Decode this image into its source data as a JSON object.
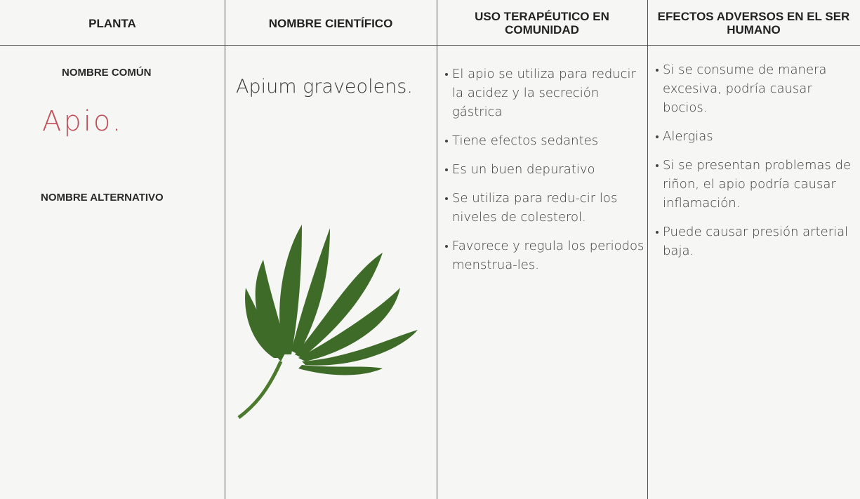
{
  "table": {
    "headers": [
      "PLANTA",
      "NOMBRE CIENTÍFICO",
      "USO TERAPÉUTICO EN COMUNIDAD",
      "EFECTOS ADVERSOS EN EL SER HUMANO"
    ],
    "planta": {
      "common_label": "NOMBRE COMÚN",
      "common_name": "Apio.",
      "alternative_label": "NOMBRE ALTERNATIVO"
    },
    "scientific_name": "Apium graveolens.",
    "uses": [
      "El apio se utiliza para reducir la acidez y la secreción gástrica",
      "Tiene efectos sedantes",
      "Es un buen depurativo",
      "Se utiliza para redu-cir los niveles de colesterol.",
      "Favorece y regula los periodos menstrua-les."
    ],
    "adverse_effects": [
      "Si se consume de manera excesiva, podría causar bocios.",
      "Alergias",
      "Si se presentan problemas de riñon, el apio podría causar inflamación.",
      "Puede causar presión arterial baja."
    ]
  }
}
